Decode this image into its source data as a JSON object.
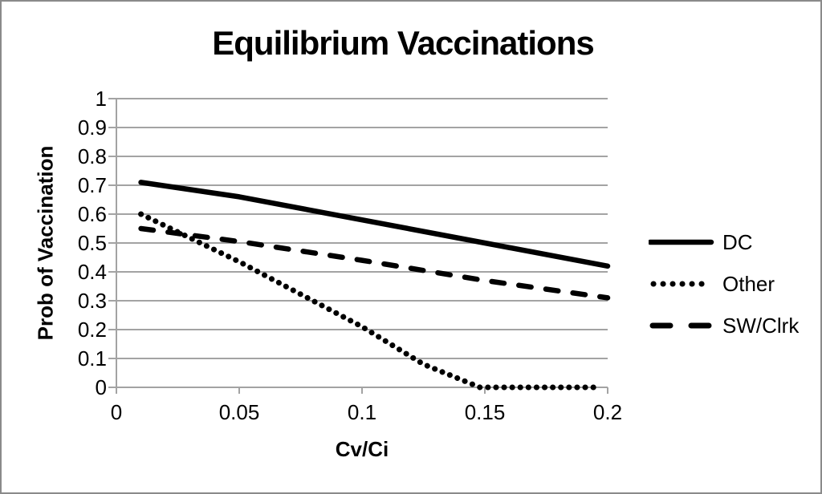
{
  "window": {
    "background_color": "#ffffff",
    "border_color": "#8a8a8a"
  },
  "chart_data": {
    "type": "line",
    "title": "Equilibrium Vaccinations",
    "xlabel": "Cv/Ci",
    "ylabel": "Prob of Vaccination",
    "xlim": [
      0,
      0.2
    ],
    "ylim": [
      0,
      1
    ],
    "x_tick_values": [
      0,
      0.05,
      0.1,
      0.15,
      0.2
    ],
    "x_tick_labels": [
      "0",
      "0.05",
      "0.1",
      "0.15",
      "0.2"
    ],
    "y_tick_values": [
      0,
      0.1,
      0.2,
      0.3,
      0.4,
      0.5,
      0.6,
      0.7,
      0.8,
      0.9,
      1
    ],
    "y_tick_labels": [
      "0",
      "0.1",
      "0.2",
      "0.3",
      "0.4",
      "0.5",
      "0.6",
      "0.7",
      "0.8",
      "0.9",
      "1"
    ],
    "grid": true,
    "grid_color": "#a3a3a3",
    "axis_color": "#a3a3a3",
    "series_color": "#000000",
    "legend_position": "right-middle",
    "series": [
      {
        "name": "DC",
        "style": "solid",
        "points": [
          [
            0.01,
            0.71
          ],
          [
            0.05,
            0.66
          ],
          [
            0.1,
            0.58
          ],
          [
            0.15,
            0.5
          ],
          [
            0.2,
            0.42
          ]
        ]
      },
      {
        "name": "Other",
        "style": "dotted",
        "points": [
          [
            0.01,
            0.6
          ],
          [
            0.05,
            0.435
          ],
          [
            0.1,
            0.21
          ],
          [
            0.125,
            0.08
          ],
          [
            0.148,
            0
          ],
          [
            0.195,
            0
          ]
        ]
      },
      {
        "name": "SW/Clrk",
        "style": "dashed",
        "points": [
          [
            0.01,
            0.55
          ],
          [
            0.05,
            0.505
          ],
          [
            0.1,
            0.44
          ],
          [
            0.15,
            0.37
          ],
          [
            0.2,
            0.31
          ]
        ]
      }
    ]
  }
}
